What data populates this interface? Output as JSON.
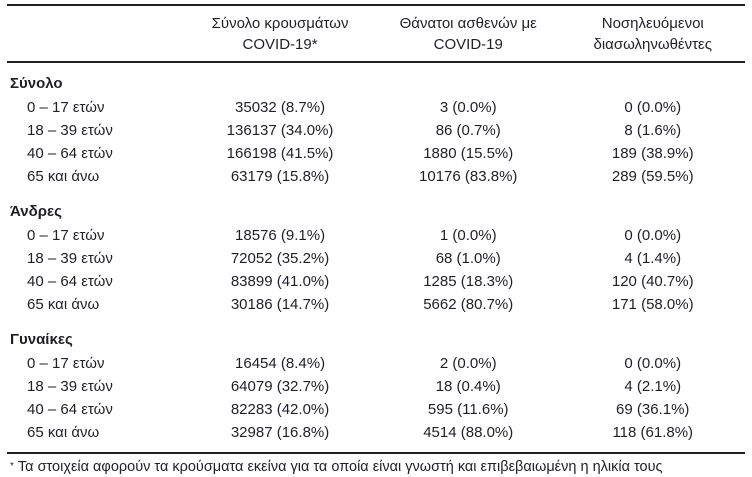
{
  "table": {
    "columns": {
      "cases": {
        "line1": "Σύνολο κρουσμάτων",
        "line2": "COVID-19*"
      },
      "deaths": {
        "line1": "Θάνατοι ασθενών με",
        "line2": "COVID-19"
      },
      "intubated": {
        "line1": "Νοσηλευόμενοι",
        "line2": "διασωληνωθέντες"
      }
    },
    "sections": [
      {
        "label": "Σύνολο",
        "rows": [
          {
            "label": "0 – 17 ετών",
            "cases": "35032 (8.7%)",
            "deaths": "3 (0.0%)",
            "intubated": "0 (0.0%)"
          },
          {
            "label": "18 – 39 ετών",
            "cases": "136137 (34.0%)",
            "deaths": "86 (0.7%)",
            "intubated": "8 (1.6%)"
          },
          {
            "label": "40 – 64 ετών",
            "cases": "166198 (41.5%)",
            "deaths": "1880 (15.5%)",
            "intubated": "189 (38.9%)"
          },
          {
            "label": "65 και άνω",
            "cases": "63179 (15.8%)",
            "deaths": "10176 (83.8%)",
            "intubated": "289 (59.5%)"
          }
        ]
      },
      {
        "label": "Άνδρες",
        "rows": [
          {
            "label": "0 – 17 ετών",
            "cases": "18576 (9.1%)",
            "deaths": "1 (0.0%)",
            "intubated": "0 (0.0%)"
          },
          {
            "label": "18 – 39 ετών",
            "cases": "72052 (35.2%)",
            "deaths": "68 (1.0%)",
            "intubated": "4 (1.4%)"
          },
          {
            "label": "40 – 64 ετών",
            "cases": "83899 (41.0%)",
            "deaths": "1285 (18.3%)",
            "intubated": "120 (40.7%)"
          },
          {
            "label": "65 και άνω",
            "cases": "30186 (14.7%)",
            "deaths": "5662 (80.7%)",
            "intubated": "171 (58.0%)"
          }
        ]
      },
      {
        "label": "Γυναίκες",
        "rows": [
          {
            "label": "0 – 17 ετών",
            "cases": "16454 (8.4%)",
            "deaths": "2 (0.0%)",
            "intubated": "0 (0.0%)"
          },
          {
            "label": "18 – 39 ετών",
            "cases": "64079 (32.7%)",
            "deaths": "18 (0.4%)",
            "intubated": "4 (2.1%)"
          },
          {
            "label": "40 – 64 ετών",
            "cases": "82283 (42.0%)",
            "deaths": "595 (11.6%)",
            "intubated": "69 (36.1%)"
          },
          {
            "label": "65 και άνω",
            "cases": "32987 (16.8%)",
            "deaths": "4514 (88.0%)",
            "intubated": "118 (61.8%)"
          }
        ]
      }
    ],
    "footnote": {
      "marker": "*",
      "text": "Τα στοιχεία αφορούν τα κρούσματα εκείνα για τα οποία είναι γνωστή και επιβεβαιωμένη η ηλικία τους"
    }
  },
  "colors": {
    "text": "#1f1f28",
    "rule": "#1f1f28",
    "background": "#ffffff"
  }
}
